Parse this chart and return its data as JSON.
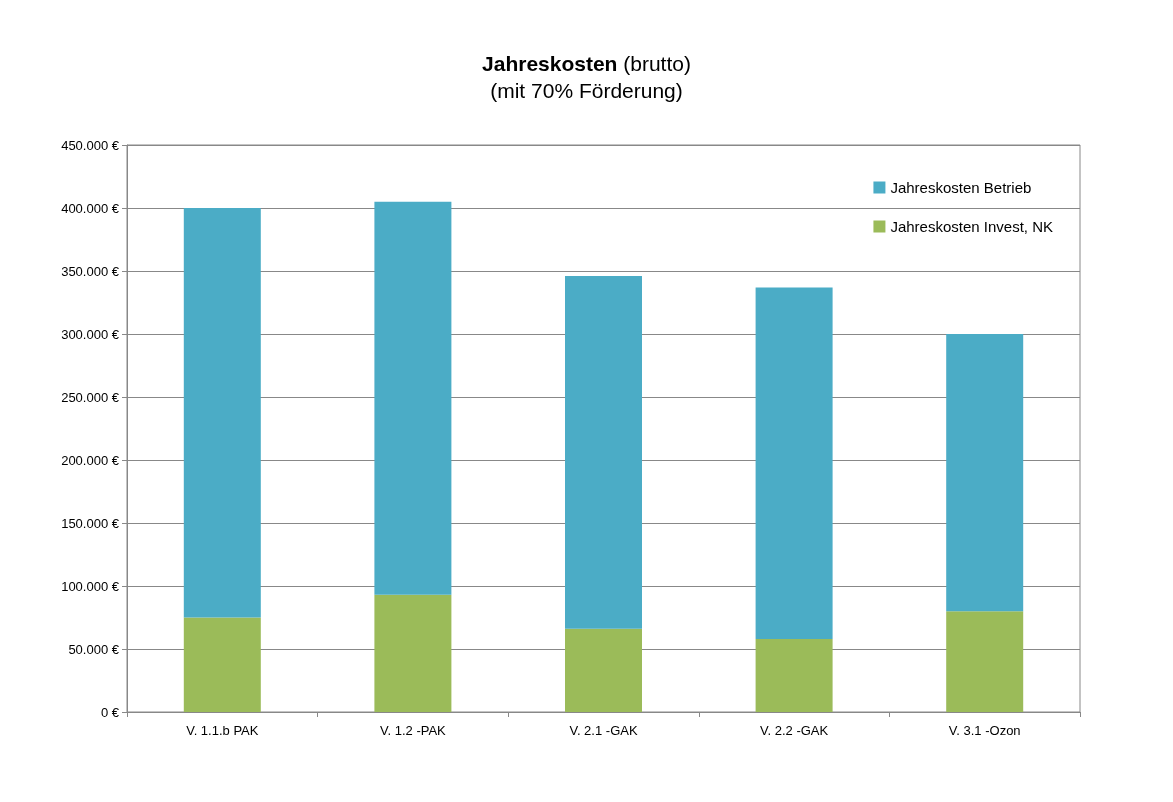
{
  "chart_data": {
    "type": "bar",
    "title": "Jahreskosten (brutto)",
    "subtitle": "(mit 70% Förderung)",
    "categories": [
      "V. 1.1.b PAK",
      "V. 1.2 -PAK",
      "V. 2.1 -GAK",
      "V. 2.2 -GAK",
      "V. 3.1 -Ozon"
    ],
    "stacked": true,
    "series": [
      {
        "name": "Jahreskosten Invest, NK",
        "color": "#9bbb59",
        "values": [
          75,
          93,
          66,
          58,
          80
        ]
      },
      {
        "name": "Jahreskosten Betrieb",
        "color": "#4bacc6",
        "values": [
          325,
          312,
          280,
          279,
          220
        ]
      }
    ],
    "ylim": [
      0,
      450
    ],
    "yticks": [
      {
        "value": 0,
        "label": "0 €"
      },
      {
        "value": 50,
        "label": "50.000 €"
      },
      {
        "value": 100,
        "label": "100.000 €"
      },
      {
        "value": 150,
        "label": "150.000 €"
      },
      {
        "value": 200,
        "label": "200.000 €"
      },
      {
        "value": 250,
        "label": "250.000 €"
      },
      {
        "value": 300,
        "label": "300.000 €"
      },
      {
        "value": 350,
        "label": "350.000 €"
      },
      {
        "value": 400,
        "label": "400.000 €"
      },
      {
        "value": 450,
        "label": "450.000 €"
      }
    ],
    "grid": "y",
    "legend": "top right"
  }
}
